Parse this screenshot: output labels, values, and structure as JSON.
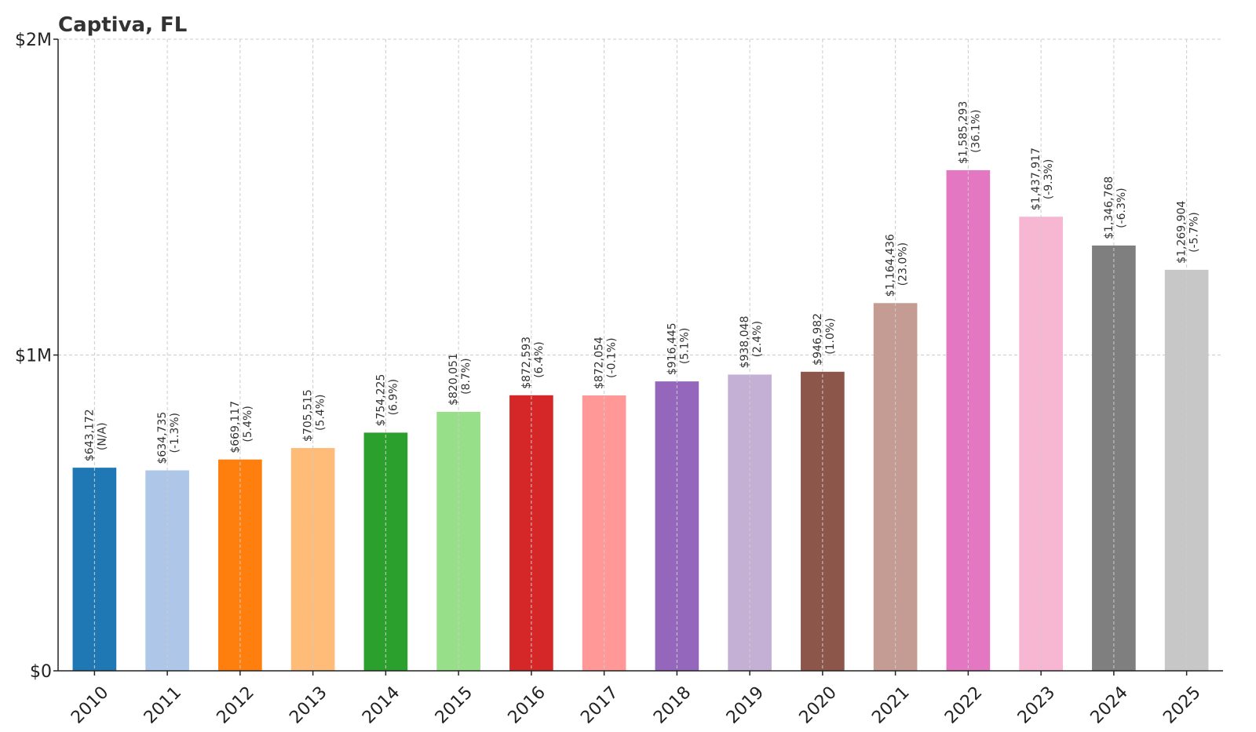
{
  "chart_data": {
    "type": "bar",
    "title": "Captiva, FL",
    "xlabel": "",
    "ylabel": "",
    "ylim": [
      0,
      2000000
    ],
    "y_ticks": [
      {
        "value": 0,
        "label": "$0"
      },
      {
        "value": 1000000,
        "label": "$1M"
      },
      {
        "value": 2000000,
        "label": "$2M"
      }
    ],
    "grid": true,
    "categories": [
      "2010",
      "2011",
      "2012",
      "2013",
      "2014",
      "2015",
      "2016",
      "2017",
      "2018",
      "2019",
      "2020",
      "2021",
      "2022",
      "2023",
      "2024",
      "2025"
    ],
    "values": [
      643172,
      634735,
      669117,
      705515,
      754225,
      820051,
      872593,
      872054,
      916445,
      938048,
      946982,
      1164436,
      1585293,
      1437917,
      1346768,
      1269904
    ],
    "value_labels": [
      "$643,172",
      "$634,735",
      "$669,117",
      "$705,515",
      "$754,225",
      "$820,051",
      "$872,593",
      "$872,054",
      "$916,445",
      "$938,048",
      "$946,982",
      "$1,164,436",
      "$1,585,293",
      "$1,437,917",
      "$1,346,768",
      "$1,269,904"
    ],
    "change_labels": [
      "(N/A)",
      "(-1.3%)",
      "(5.4%)",
      "(5.4%)",
      "(6.9%)",
      "(8.7%)",
      "(6.4%)",
      "(-0.1%)",
      "(5.1%)",
      "(2.4%)",
      "(1.0%)",
      "(23.0%)",
      "(36.1%)",
      "(-9.3%)",
      "(-6.3%)",
      "(-5.7%)"
    ],
    "colors": [
      "#1f77b4",
      "#aec7e8",
      "#ff7f0e",
      "#ffbb78",
      "#2ca02c",
      "#98df8a",
      "#d62728",
      "#ff9896",
      "#9467bd",
      "#c5b0d5",
      "#8c564b",
      "#c49c94",
      "#e377c2",
      "#f7b6d2",
      "#7f7f7f",
      "#c7c7c7"
    ]
  }
}
